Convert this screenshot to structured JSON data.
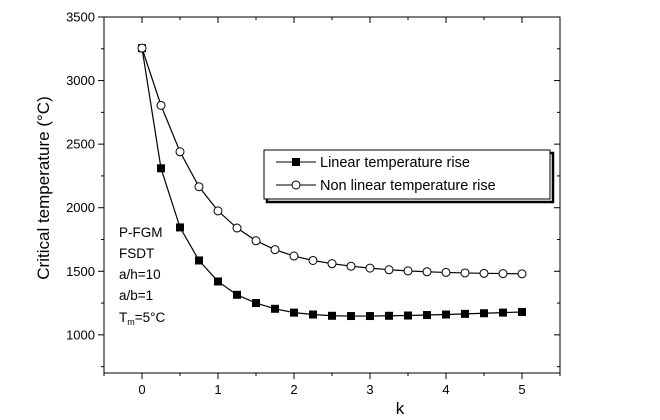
{
  "chart_data": {
    "type": "line",
    "title": "",
    "xlabel": "k",
    "ylabel": "Critical temperature (°C)",
    "xlim": [
      -0.5,
      5.5
    ],
    "ylim": [
      700,
      3500
    ],
    "x_ticks": [
      0,
      1,
      2,
      3,
      4,
      5
    ],
    "x_tick_labels": [
      "0",
      "1",
      "2",
      "3",
      "4",
      "5"
    ],
    "y_ticks": [
      1000,
      1500,
      2000,
      2500,
      3000,
      3500
    ],
    "y_tick_labels": [
      "1000",
      "1500",
      "2000",
      "2500",
      "3000",
      "3500"
    ],
    "grid": false,
    "legend_position": "center-right",
    "x": [
      0,
      0.25,
      0.5,
      0.75,
      1,
      1.25,
      1.5,
      1.75,
      2,
      2.25,
      2.5,
      2.75,
      3,
      3.25,
      3.5,
      3.75,
      4,
      4.25,
      4.5,
      4.75,
      5
    ],
    "series": [
      {
        "name": "Linear temperature rise",
        "marker": "filled-square",
        "values": [
          3255,
          2310,
          1845,
          1585,
          1420,
          1315,
          1250,
          1205,
          1175,
          1160,
          1150,
          1148,
          1148,
          1150,
          1152,
          1156,
          1160,
          1165,
          1170,
          1175,
          1180
        ]
      },
      {
        "name": "Non linear temperature rise",
        "marker": "open-circle",
        "values": [
          3255,
          2805,
          2440,
          2165,
          1975,
          1840,
          1740,
          1670,
          1620,
          1585,
          1560,
          1540,
          1525,
          1512,
          1503,
          1496,
          1491,
          1487,
          1484,
          1482,
          1480
        ]
      }
    ],
    "annotation_lines": [
      "P-FGM",
      "FSDT",
      "a/h=10",
      "a/b=1"
    ],
    "annotation_tm": {
      "prefix": "T",
      "subscript": "m",
      "suffix": "=5°C"
    },
    "colors": {
      "line": "#000000",
      "background": "#ffffff"
    }
  }
}
